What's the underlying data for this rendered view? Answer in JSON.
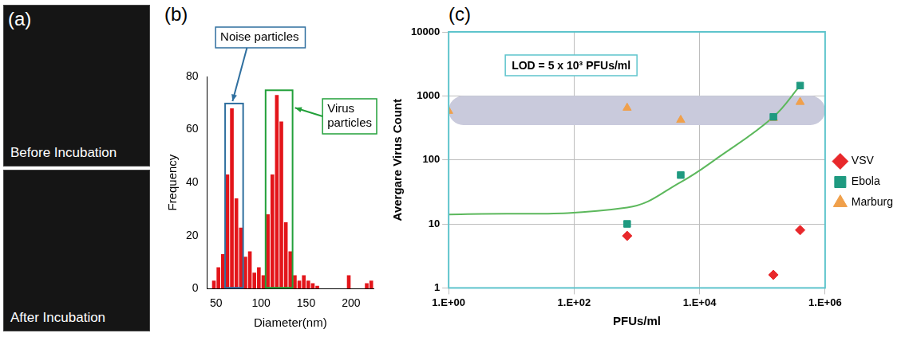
{
  "panel_a": {
    "title": "(a)",
    "images": [
      {
        "label": "Before Incubation"
      },
      {
        "label": "After Incubation"
      }
    ]
  },
  "chart_data": [
    {
      "title": "(b)",
      "type": "histogram",
      "x_label": "Diameter(nm)",
      "y_label": "Frequency",
      "bins": [
        45,
        50,
        55,
        60,
        65,
        70,
        75,
        80,
        85,
        90,
        95,
        100,
        105,
        110,
        115,
        120,
        125,
        130,
        135,
        140,
        145,
        150,
        155,
        160,
        165,
        170,
        175,
        180,
        185,
        190,
        195,
        200,
        205,
        210,
        215,
        220,
        225
      ],
      "values": [
        3,
        8,
        13,
        43,
        68,
        34,
        23,
        12,
        14,
        6,
        8,
        5,
        28,
        43,
        73,
        63,
        25,
        14,
        5,
        3,
        5,
        3,
        2,
        1,
        0,
        0,
        0,
        0,
        0,
        0,
        5,
        0,
        0,
        0,
        2,
        3
      ],
      "color": "#e3151a",
      "xlim": [
        40,
        225
      ],
      "ylim": [
        0,
        80
      ],
      "xticks": [
        50,
        100,
        150,
        200
      ],
      "yticks": [
        0,
        20,
        40,
        60,
        80
      ],
      "grid": false,
      "annotations": [
        {
          "text": "Noise particles",
          "span": [
            60,
            80
          ],
          "color": "#2f6f9f"
        },
        {
          "text": "Virus particles",
          "span": [
            105,
            135
          ],
          "color": "#22a03a"
        }
      ]
    },
    {
      "title": "(c)",
      "type": "scatter",
      "x_label": "PFUs/ml",
      "y_label": "Avergare Virus Count",
      "log": true,
      "grid": true,
      "legend": "right",
      "xlim": [
        1,
        1000000
      ],
      "ylim": [
        1,
        10000
      ],
      "xticks": [
        {
          "value": 1,
          "label": "1.E+00"
        },
        {
          "value": 100,
          "label": "1.E+02"
        },
        {
          "value": 10000,
          "label": "1.E+04"
        },
        {
          "value": 1000000,
          "label": "1.E+06"
        }
      ],
      "yticks": [
        1,
        10,
        100,
        1000,
        10000
      ],
      "series": [
        {
          "name": "VSV",
          "color": "#e8282b",
          "marker": "diamond",
          "x": [
            700,
            150000,
            400000
          ],
          "values": [
            6.5,
            1.6,
            8
          ]
        },
        {
          "name": "Ebola",
          "color": "#1f9a80",
          "marker": "square",
          "x": [
            700,
            5000,
            150000,
            400000
          ],
          "values": [
            10,
            58,
            470,
            1450
          ]
        },
        {
          "name": "Marburg",
          "color": "#f0a04b",
          "marker": "triangle",
          "x": [
            1,
            700,
            5000,
            150000,
            400000
          ],
          "values": [
            580,
            650,
            420,
            450,
            800
          ]
        },
        {
          "type": "line",
          "color": "#5cb85c",
          "line_style": "solid",
          "x": [
            1,
            700,
            5000,
            20000,
            150000,
            400000
          ],
          "values": [
            14,
            18,
            45,
            110,
            470,
            1450
          ]
        }
      ],
      "annotations": [
        {
          "text": "LOD = 5 x 10³ PFUs/ml",
          "x": 8,
          "y": 3000
        }
      ],
      "band": {
        "x": [
          1,
          1000000
        ],
        "y": [
          350,
          1000
        ],
        "color": "#c9cadc"
      }
    }
  ]
}
